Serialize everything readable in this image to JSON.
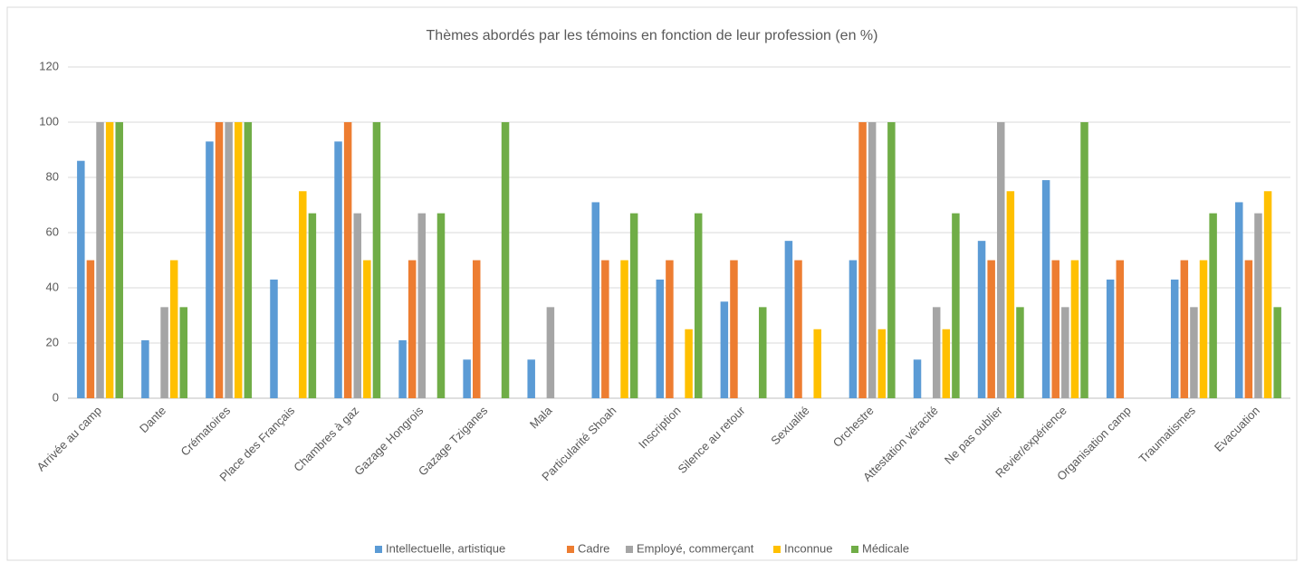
{
  "chart_data": {
    "type": "bar",
    "title": "Thèmes abordés par les témoins en fonction de leur profession (en %)",
    "categories": [
      "Arrivée au camp",
      "Dante",
      "Crématoires",
      "Place des Français",
      "Chambres à gaz",
      "Gazage Hongrois",
      "Gazage Tziganes",
      "Mala",
      "Particularité Shoah",
      "Inscription",
      "Silence au retour",
      "Sexualité",
      "Orchestre",
      "Attestation véracité",
      "Ne pas oublier",
      "Revier/expérience",
      "Organisation camp",
      "Traumatismes",
      "Evacuation"
    ],
    "series": [
      {
        "name": "Intellectuelle, artistique",
        "color": "#5b9bd5",
        "values": [
          86,
          21,
          93,
          43,
          93,
          21,
          14,
          14,
          71,
          43,
          35,
          57,
          50,
          14,
          57,
          79,
          43,
          43,
          71
        ]
      },
      {
        "name": "Cadre",
        "color": "#ed7d31",
        "values": [
          50,
          0,
          100,
          0,
          100,
          50,
          50,
          0,
          50,
          50,
          50,
          50,
          100,
          0,
          50,
          50,
          50,
          50,
          50
        ]
      },
      {
        "name": "Employé, commerçant",
        "color": "#a5a5a5",
        "values": [
          100,
          33,
          100,
          0,
          67,
          67,
          0,
          33,
          0,
          0,
          0,
          0,
          100,
          33,
          100,
          33,
          0,
          33,
          67
        ]
      },
      {
        "name": "Inconnue",
        "color": "#ffc000",
        "values": [
          100,
          50,
          100,
          75,
          50,
          0,
          0,
          0,
          50,
          25,
          0,
          25,
          25,
          25,
          75,
          50,
          0,
          50,
          75
        ]
      },
      {
        "name": "Médicale",
        "color": "#70ad47",
        "values": [
          100,
          33,
          100,
          67,
          100,
          67,
          100,
          0,
          67,
          67,
          33,
          0,
          100,
          67,
          33,
          100,
          0,
          67,
          33
        ]
      }
    ],
    "ylim": [
      0,
      120
    ],
    "yticks": [
      0,
      20,
      40,
      60,
      80,
      100,
      120
    ],
    "grid": true,
    "legend": "bottom"
  }
}
